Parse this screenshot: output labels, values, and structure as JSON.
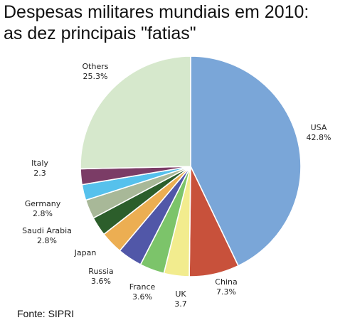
{
  "title": {
    "line1": "Despesas militares mundiais em 2010:",
    "line2": "as dez principais \"fatias\""
  },
  "source": "Fonte: SIPRI",
  "chart_data": {
    "type": "pie",
    "title": "Despesas militares mundiais em 2010: as dez principais \"fatias\"",
    "unit": "%",
    "slices": [
      {
        "name": "USA",
        "value": 42.8,
        "label": "42.8%",
        "color": "#7aa6d8"
      },
      {
        "name": "China",
        "value": 7.3,
        "label": "7.3%",
        "color": "#c8513b"
      },
      {
        "name": "UK",
        "value": 3.7,
        "label": "3.7",
        "color": "#f2ec8e"
      },
      {
        "name": "France",
        "value": 3.6,
        "label": "3.6%",
        "color": "#7cc46a"
      },
      {
        "name": "Russia",
        "value": 3.6,
        "label": "3.6%",
        "color": "#5157a8"
      },
      {
        "name": "Japan",
        "value": 3.3,
        "label": "",
        "color": "#ecae52"
      },
      {
        "name": "Saudi Arabia",
        "value": 2.8,
        "label": "2.8%",
        "color": "#2c5e2b"
      },
      {
        "name": "Germany",
        "value": 2.8,
        "label": "2.8%",
        "color": "#a8b898"
      },
      {
        "name": "Italy",
        "value": 2.3,
        "label": "2.3",
        "color": "#56c1ec"
      },
      {
        "name": "",
        "value": 2.3,
        "label": "",
        "color": "#7b3c66"
      },
      {
        "name": "Others",
        "value": 25.3,
        "label": "25.3%",
        "color": "#d6e8cc"
      }
    ]
  }
}
